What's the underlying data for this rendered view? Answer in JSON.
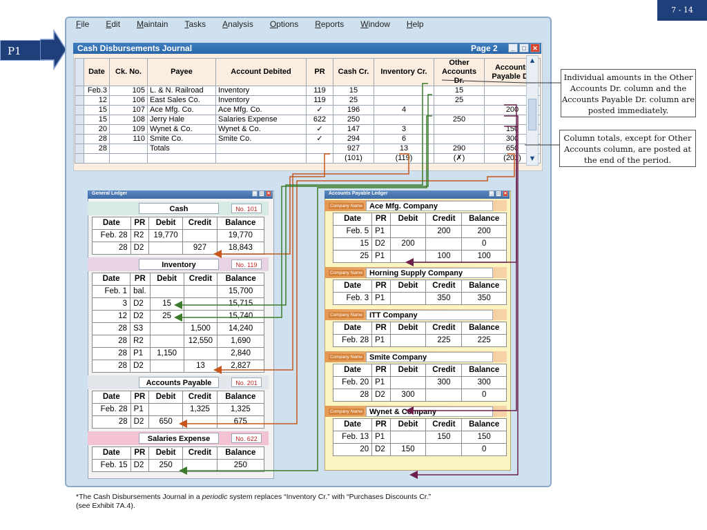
{
  "slide_number": "7 - 14",
  "marker_label": "P1",
  "menu": [
    "File",
    "Edit",
    "Maintain",
    "Tasks",
    "Analysis",
    "Options",
    "Reports",
    "Window",
    "Help"
  ],
  "cdj": {
    "title": "Cash Disbursements Journal",
    "page": "Page 2",
    "headers": [
      "Date",
      "Ck. No.",
      "Payee",
      "Account Debited",
      "PR",
      "Cash Cr.",
      "Inventory Cr.",
      "Other Accounts Dr.",
      "Accounts Payable Dr."
    ],
    "rows": [
      [
        "Feb.3",
        "105",
        "L. & N. Railroad",
        "Inventory",
        "119",
        "15",
        "",
        "15",
        ""
      ],
      [
        "12",
        "106",
        "East Sales Co.",
        "Inventory",
        "119",
        "25",
        "",
        "25",
        ""
      ],
      [
        "15",
        "107",
        "Ace Mfg. Co.",
        "Ace Mfg. Co.",
        "✓",
        "196",
        "4",
        "",
        "200"
      ],
      [
        "15",
        "108",
        "Jerry Hale",
        "Salaries Expense",
        "622",
        "250",
        "",
        "250",
        ""
      ],
      [
        "20",
        "109",
        "Wynet & Co.",
        "Wynet & Co.",
        "✓",
        "147",
        "3",
        "",
        "150"
      ],
      [
        "28",
        "110",
        "Smite Co.",
        "Smite Co.",
        "✓",
        "294",
        "6",
        "",
        "300"
      ],
      [
        "28",
        "",
        "Totals",
        "",
        "",
        "927",
        "13",
        "290",
        "650"
      ],
      [
        "",
        "",
        "",
        "",
        "",
        "(101)",
        "(119)",
        "(✗)",
        "(201)"
      ]
    ]
  },
  "notes": [
    "Individual amounts in the Other Accounts Dr. column and the Accounts Payable Dr. column are posted immediately.",
    "Column totals, except for Other Accounts column, are posted at the end of the period."
  ],
  "general_ledger": {
    "title": "General Ledger",
    "headers": [
      "Date",
      "PR",
      "Debit",
      "Credit",
      "Balance"
    ],
    "accounts": [
      {
        "name": "Cash",
        "no": "No. 101",
        "rows": [
          [
            "Feb. 28",
            "R2",
            "19,770",
            "",
            "19,770"
          ],
          [
            "28",
            "D2",
            "",
            "927",
            "18,843"
          ]
        ]
      },
      {
        "name": "Inventory",
        "no": "No. 119",
        "rows": [
          [
            "Feb.  1",
            "bal.",
            "",
            "",
            "15,700"
          ],
          [
            "3",
            "D2",
            "15",
            "",
            "15,715"
          ],
          [
            "12",
            "D2",
            "25",
            "",
            "15,740"
          ],
          [
            "28",
            "S3",
            "",
            "1,500",
            "14,240"
          ],
          [
            "28",
            "R2",
            "",
            "12,550",
            "1,690"
          ],
          [
            "28",
            "P1",
            "1,150",
            "",
            "2,840"
          ],
          [
            "28",
            "D2",
            "",
            "13",
            "2,827"
          ]
        ]
      },
      {
        "name": "Accounts Payable",
        "no": "No. 201",
        "rows": [
          [
            "Feb. 28",
            "P1",
            "",
            "1,325",
            "1,325"
          ],
          [
            "28",
            "D2",
            "650",
            "",
            "675"
          ]
        ]
      },
      {
        "name": "Salaries Expense",
        "no": "No. 622",
        "rows": [
          [
            "Feb. 15",
            "D2",
            "250",
            "",
            "250"
          ]
        ]
      }
    ]
  },
  "ap_ledger": {
    "title": "Accounts Payable Ledger",
    "company_label": "Company Name",
    "headers": [
      "Date",
      "PR",
      "Debit",
      "Credit",
      "Balance"
    ],
    "companies": [
      {
        "name": "Ace Mfg. Company",
        "rows": [
          [
            "Feb.  5",
            "P1",
            "",
            "200",
            "200"
          ],
          [
            "15",
            "D2",
            "200",
            "",
            "0"
          ],
          [
            "25",
            "P1",
            "",
            "100",
            "100"
          ]
        ]
      },
      {
        "name": "Horning Supply Company",
        "rows": [
          [
            "Feb.  3",
            "P1",
            "",
            "350",
            "350"
          ]
        ]
      },
      {
        "name": "ITT Company",
        "rows": [
          [
            "Feb. 28",
            "P1",
            "",
            "225",
            "225"
          ]
        ]
      },
      {
        "name": "Smite Company",
        "rows": [
          [
            "Feb. 20",
            "P1",
            "",
            "300",
            "300"
          ],
          [
            "28",
            "D2",
            "300",
            "",
            "0"
          ]
        ]
      },
      {
        "name": "Wynet & Company",
        "rows": [
          [
            "Feb. 13",
            "P1",
            "",
            "150",
            "150"
          ],
          [
            "20",
            "D2",
            "150",
            "",
            "0"
          ]
        ]
      }
    ]
  },
  "footnote": {
    "line1_a": "*The Cash Disbursements Journal in a ",
    "line1_em": "periodic",
    "line1_b": " system replaces “Inventory Cr.” with “Purchases Discounts Cr.”",
    "line2": "(see Exhibit 7A.4)."
  },
  "colors": {
    "link_orange": "#c8551c",
    "link_green": "#3a7a2a",
    "link_purple": "#6b1f4a",
    "slide_blue": "#1f3f7a"
  }
}
